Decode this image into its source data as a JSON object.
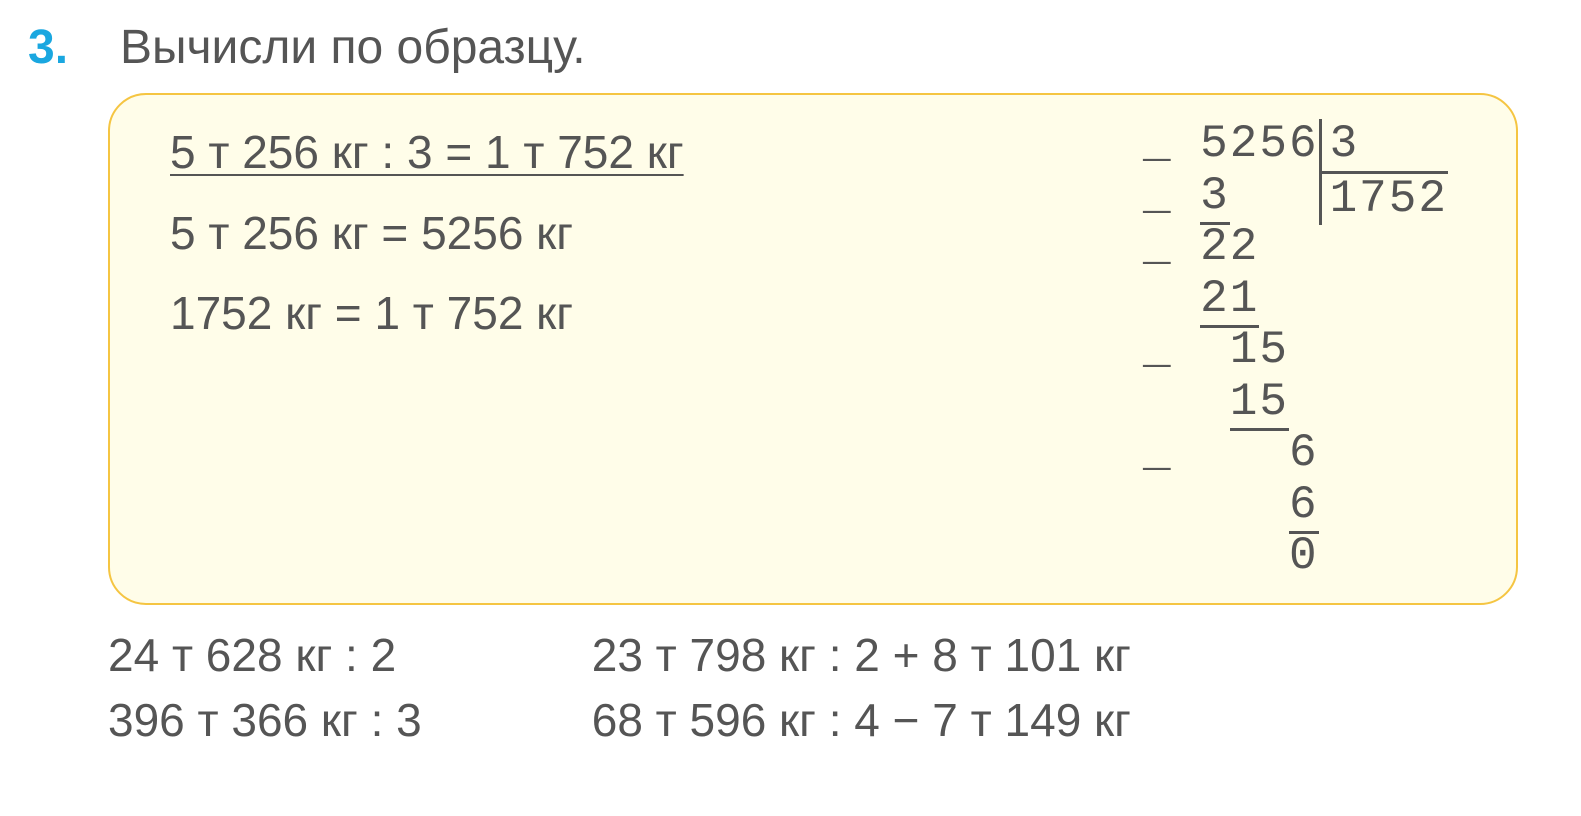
{
  "colors": {
    "numColor": "#1aa7e0",
    "textColor": "#555555",
    "boxBg": "#fffde9",
    "boxBorder": "#f5c542"
  },
  "heading": {
    "number": "3.",
    "title": "Вычисли по образцу."
  },
  "example": {
    "line1": "5 т 256 кг : 3 = 1 т 752 кг",
    "line2": "5 т 256 кг = 5256 кг",
    "line3": "1752 кг = 1 т 752 кг"
  },
  "longDivision": {
    "dividend": "5256",
    "divisor": "3",
    "quotient": "1752",
    "steps": [
      {
        "minus": true,
        "pad": 0,
        "val": "3",
        "underline": true
      },
      {
        "minus": true,
        "pad": 0,
        "val": "22",
        "underline": false
      },
      {
        "minus": false,
        "pad": 0,
        "val": "21",
        "underline": true
      },
      {
        "minus": true,
        "pad": 1,
        "val": "15",
        "underline": false
      },
      {
        "minus": false,
        "pad": 1,
        "val": "15",
        "underline": true
      },
      {
        "minus": true,
        "pad": 3,
        "val": "6",
        "underline": false
      },
      {
        "minus": false,
        "pad": 3,
        "val": "6",
        "underline": true
      },
      {
        "minus": false,
        "pad": 3,
        "val": "0",
        "underline": false
      }
    ],
    "fontSize": 46,
    "color": "#555555"
  },
  "problems": {
    "col1": [
      "24 т 628 кг : 2",
      "396 т 366 кг : 3"
    ],
    "col2": [
      "23 т 798 кг : 2 + 8 т 101 кг",
      "68 т 596 кг : 4 − 7 т 149 кг"
    ]
  },
  "typography": {
    "baseFontPt": 34,
    "headingFontPt": 36,
    "fontFamily": "Arial"
  }
}
